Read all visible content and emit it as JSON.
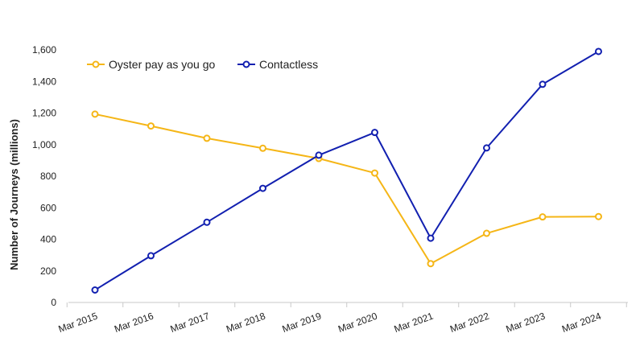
{
  "chart_data": {
    "type": "line",
    "title": "",
    "xlabel": "",
    "ylabel": "Number of Journeys (millions)",
    "categories": [
      "Mar 2015",
      "Mar 2016",
      "Mar 2017",
      "Mar 2018",
      "Mar 2019",
      "Mar 2020",
      "Mar 2021",
      "Mar 2022",
      "Mar 2023",
      "Mar 2024"
    ],
    "ylim": [
      0,
      1600
    ],
    "yticks": [
      0,
      200,
      400,
      600,
      800,
      1000,
      1200,
      1400,
      1600
    ],
    "ytick_labels": [
      "0",
      "200",
      "400",
      "600",
      "800",
      "1,000",
      "1,200",
      "1,400",
      "1,600"
    ],
    "grid": false,
    "legend_position": "top-left",
    "series": [
      {
        "name": "Oyster pay as you go",
        "color": "#F5B617",
        "values": [
          1193,
          1118,
          1040,
          977,
          912,
          820,
          246,
          438,
          542,
          544
        ]
      },
      {
        "name": "Contactless",
        "color": "#1220B0",
        "values": [
          79,
          296,
          508,
          723,
          933,
          1077,
          407,
          979,
          1382,
          1590
        ]
      }
    ]
  }
}
